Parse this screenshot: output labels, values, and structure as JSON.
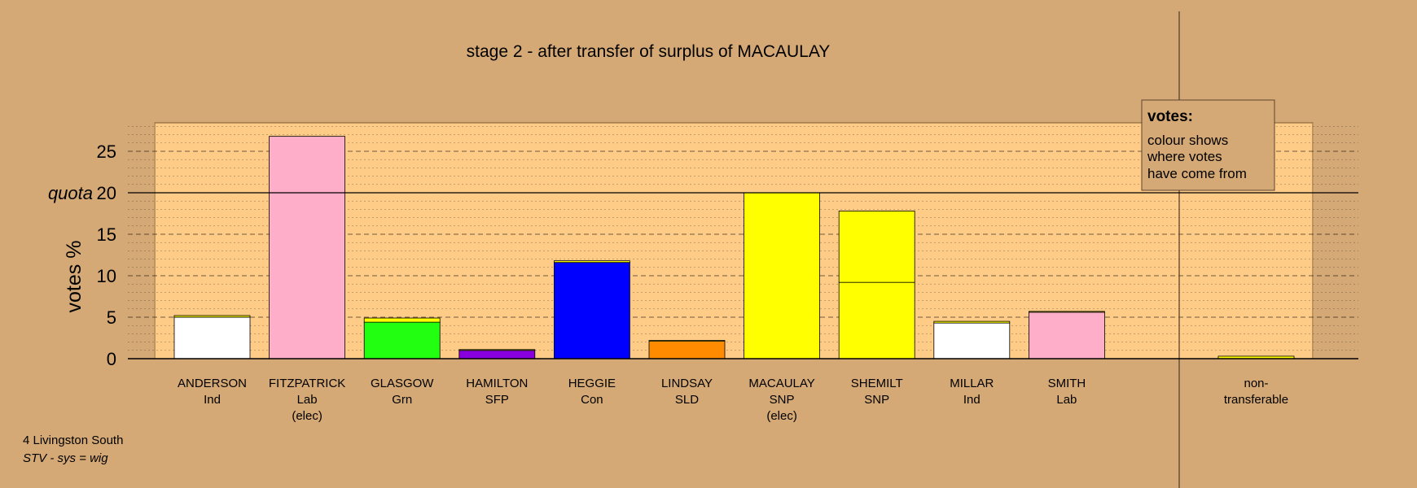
{
  "chart_data": {
    "type": "bar",
    "title": "stage 2 - after transfer of surplus of MACAULAY",
    "ylabel": "votes %",
    "ylim": [
      0,
      28.5
    ],
    "yticks": [
      0,
      5,
      10,
      15,
      20,
      25
    ],
    "quota": 20,
    "quota_label": "quota",
    "grid": true,
    "candidates": [
      {
        "name": "ANDERSON",
        "party": "Ind",
        "note": "",
        "segments": [
          {
            "value": 5.0,
            "color": "#ffffff"
          },
          {
            "value": 0.2,
            "color": "#ffff00"
          }
        ]
      },
      {
        "name": "FITZPATRICK",
        "party": "Lab",
        "note": "(elec)",
        "segments": [
          {
            "value": 26.8,
            "color": "#ffaec9"
          }
        ]
      },
      {
        "name": "GLASGOW",
        "party": "Grn",
        "note": "",
        "segments": [
          {
            "value": 4.4,
            "color": "#22ff11"
          },
          {
            "value": 0.5,
            "color": "#ffff00"
          }
        ]
      },
      {
        "name": "HAMILTON",
        "party": "SFP",
        "note": "",
        "segments": [
          {
            "value": 1.0,
            "color": "#8800dd"
          },
          {
            "value": 0.1,
            "color": "#ffff00"
          }
        ]
      },
      {
        "name": "HEGGIE",
        "party": "Con",
        "note": "",
        "segments": [
          {
            "value": 11.6,
            "color": "#0000ff"
          },
          {
            "value": 0.2,
            "color": "#ffff00"
          }
        ]
      },
      {
        "name": "LINDSAY",
        "party": "SLD",
        "note": "",
        "segments": [
          {
            "value": 2.1,
            "color": "#ff8c00"
          },
          {
            "value": 0.1,
            "color": "#ffff00"
          }
        ]
      },
      {
        "name": "MACAULAY",
        "party": "SNP",
        "note": "(elec)",
        "segments": [
          {
            "value": 20.0,
            "color": "#ffff00"
          }
        ]
      },
      {
        "name": "SHEMILT",
        "party": "SNP",
        "note": "",
        "segments": [
          {
            "value": 9.2,
            "color": "#ffff00"
          },
          {
            "value": 8.6,
            "color": "#ffff00"
          }
        ]
      },
      {
        "name": "MILLAR",
        "party": "Ind",
        "note": "",
        "segments": [
          {
            "value": 4.3,
            "color": "#ffffff"
          },
          {
            "value": 0.2,
            "color": "#ffff00"
          }
        ]
      },
      {
        "name": "SMITH",
        "party": "Lab",
        "note": "",
        "segments": [
          {
            "value": 5.6,
            "color": "#ffaec9"
          },
          {
            "value": 0.1,
            "color": "#ffff00"
          }
        ]
      }
    ],
    "nontransferable": {
      "label_line1": "non-",
      "label_line2": "transferable",
      "value": 0.3,
      "color": "#ffff00"
    },
    "legend": {
      "title": "votes:",
      "lines": [
        "colour shows",
        "where votes",
        "have come from"
      ],
      "placement": "top-right"
    },
    "footer": {
      "line1": "4 Livingston South",
      "line2": "STV - sys = wig"
    },
    "colors": {
      "background": "#d5a975",
      "plot_band": "#ffcc88"
    }
  }
}
